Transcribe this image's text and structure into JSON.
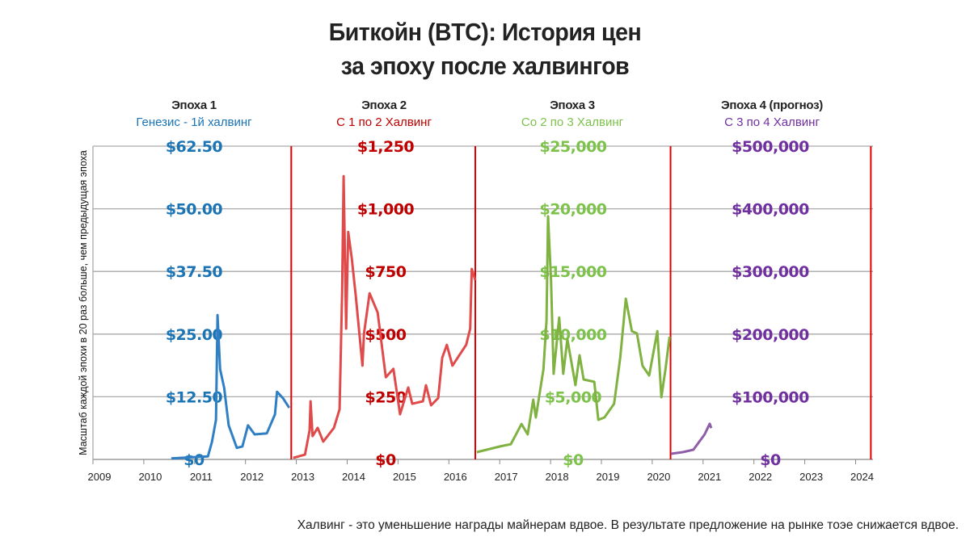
{
  "title_line1": "Биткойн (BTC): История цен",
  "title_line2": "за эпоху после халвингов",
  "footer": "Халвинг - это уменьшение награды майнерам вдвое. В результате предложение на рынке тоэе снижается вдвое.",
  "chart_data": {
    "type": "line",
    "ylabel": "Масштаб каждой эпохи в 20 раз больше, чем предыдущая эпоха",
    "x_ticks": [
      "2009",
      "2010",
      "2011",
      "2012",
      "2013",
      "2014",
      "2015",
      "2016",
      "2017",
      "2018",
      "2019",
      "2020",
      "2021",
      "2022",
      "2023",
      "2024"
    ],
    "xlim": [
      2009,
      2024.4
    ],
    "grid": true,
    "halvings": [
      2012.9,
      2016.52,
      2020.36,
      2024.3
    ],
    "epochs": [
      {
        "name": "Эпоха 1",
        "subtitle": "Генезис - 1й халвинг",
        "color": "#1b74b4",
        "line_color": "#2f7fc4",
        "ymax": 62.5,
        "ticks": [
          "$0",
          "$12.50",
          "$25.00",
          "$37.50",
          "$50.00",
          "$62.50"
        ],
        "points": [
          [
            2010.54,
            0.2
          ],
          [
            2011.26,
            0.6
          ],
          [
            2011.34,
            3.5
          ],
          [
            2011.42,
            7.9
          ],
          [
            2011.45,
            28.8
          ],
          [
            2011.5,
            18
          ],
          [
            2011.58,
            14.3
          ],
          [
            2011.67,
            6.8
          ],
          [
            2011.83,
            2.3
          ],
          [
            2011.94,
            2.6
          ],
          [
            2012.05,
            6.8
          ],
          [
            2012.18,
            5.0
          ],
          [
            2012.42,
            5.2
          ],
          [
            2012.58,
            9.0
          ],
          [
            2012.62,
            13.5
          ],
          [
            2012.74,
            12.2
          ],
          [
            2012.86,
            10.3
          ]
        ]
      },
      {
        "name": "Эпоха 2",
        "subtitle": "С 1 по 2 Халвинг",
        "color": "#c00000",
        "line_color": "#e04a4a",
        "ymax": 1250,
        "ticks": [
          "$0",
          "$250",
          "$500",
          "$750",
          "$1,000",
          "$1,250"
        ],
        "points": [
          [
            2012.94,
            6
          ],
          [
            2013.17,
            19
          ],
          [
            2013.26,
            116
          ],
          [
            2013.28,
            232
          ],
          [
            2013.32,
            93
          ],
          [
            2013.42,
            126
          ],
          [
            2013.53,
            71
          ],
          [
            2013.74,
            126
          ],
          [
            2013.85,
            200
          ],
          [
            2013.9,
            663
          ],
          [
            2013.93,
            1130
          ],
          [
            2013.98,
            522
          ],
          [
            2014.02,
            908
          ],
          [
            2014.09,
            802
          ],
          [
            2014.17,
            650
          ],
          [
            2014.3,
            374
          ],
          [
            2014.33,
            502
          ],
          [
            2014.44,
            663
          ],
          [
            2014.6,
            586
          ],
          [
            2014.76,
            328
          ],
          [
            2014.91,
            361
          ],
          [
            2015.04,
            180
          ],
          [
            2015.2,
            287
          ],
          [
            2015.28,
            222
          ],
          [
            2015.49,
            232
          ],
          [
            2015.55,
            296
          ],
          [
            2015.65,
            216
          ],
          [
            2015.79,
            245
          ],
          [
            2015.87,
            406
          ],
          [
            2015.96,
            457
          ],
          [
            2016.07,
            374
          ],
          [
            2016.34,
            457
          ],
          [
            2016.42,
            522
          ],
          [
            2016.45,
            760
          ],
          [
            2016.52,
            715
          ]
        ]
      },
      {
        "name": "Эпоха 3",
        "subtitle": "Со 2 по 3 Халвинг",
        "color": "#7dc24b",
        "line_color": "#7fb241",
        "ymax": 25000,
        "ticks": [
          "$0",
          "$5,000",
          "$10,000",
          "$15,000",
          "$20,000",
          "$25,000"
        ],
        "points": [
          [
            2016.55,
            580
          ],
          [
            2017.0,
            1030
          ],
          [
            2017.22,
            1220
          ],
          [
            2017.43,
            2830
          ],
          [
            2017.55,
            2000
          ],
          [
            2017.66,
            4770
          ],
          [
            2017.71,
            3350
          ],
          [
            2017.86,
            7200
          ],
          [
            2017.92,
            11080
          ],
          [
            2017.95,
            19400
          ],
          [
            2018.01,
            14300
          ],
          [
            2018.06,
            6830
          ],
          [
            2018.17,
            11330
          ],
          [
            2018.25,
            6830
          ],
          [
            2018.33,
            9600
          ],
          [
            2018.49,
            5930
          ],
          [
            2018.57,
            8310
          ],
          [
            2018.65,
            6380
          ],
          [
            2018.86,
            6190
          ],
          [
            2018.94,
            3160
          ],
          [
            2019.06,
            3350
          ],
          [
            2019.25,
            4440
          ],
          [
            2019.37,
            8120
          ],
          [
            2019.48,
            12820
          ],
          [
            2019.6,
            10240
          ],
          [
            2019.7,
            10050
          ],
          [
            2019.81,
            7470
          ],
          [
            2019.94,
            6700
          ],
          [
            2020.1,
            10240
          ],
          [
            2020.18,
            4960
          ],
          [
            2020.26,
            7210
          ],
          [
            2020.34,
            9790
          ]
        ]
      },
      {
        "name": "Эпоха 4 (прогноз)",
        "subtitle": "С 3 по 4 Халвинг",
        "color": "#7030a0",
        "line_color": "#8e5fa8",
        "ymax": 500000,
        "ticks": [
          "$0",
          "$100,000",
          "$200,000",
          "$300,000",
          "$400,000",
          "$500,000"
        ],
        "points": [
          [
            2020.37,
            9000
          ],
          [
            2020.6,
            11600
          ],
          [
            2020.81,
            15500
          ],
          [
            2021.03,
            40000
          ],
          [
            2021.13,
            57000
          ],
          [
            2021.16,
            50000
          ]
        ]
      }
    ]
  }
}
